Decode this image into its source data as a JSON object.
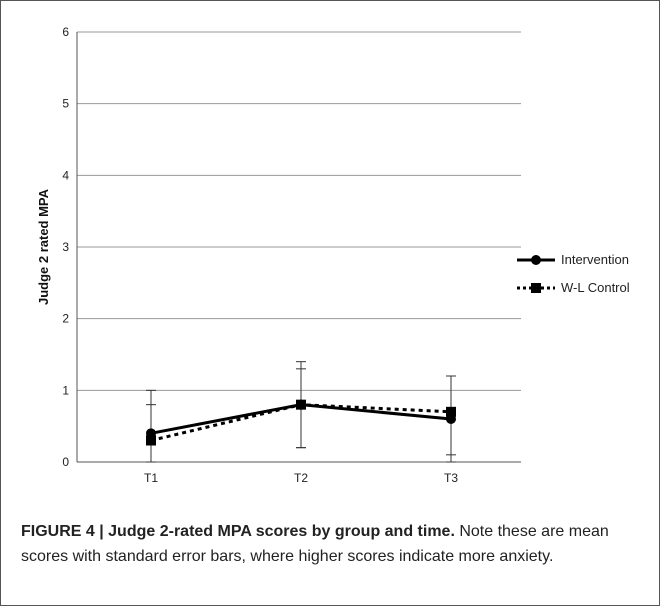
{
  "chart_data": {
    "type": "line",
    "categories": [
      "T1",
      "T2",
      "T3"
    ],
    "ylabel": "Judge 2 rated MPA",
    "ylim": [
      0,
      6
    ],
    "yticks": [
      0,
      1,
      2,
      3,
      4,
      5,
      6
    ],
    "grid": true,
    "legend": "right",
    "series": [
      {
        "name": "Intervention",
        "values": [
          0.4,
          0.8,
          0.6
        ],
        "error_upper": [
          1.0,
          1.4,
          1.2
        ],
        "error_lower": [
          0.0,
          0.2,
          0.0
        ],
        "marker": "circle",
        "line_style": "solid",
        "color": "#000000"
      },
      {
        "name": "W-L Control",
        "values": [
          0.3,
          0.8,
          0.7
        ],
        "error_upper": [
          0.8,
          1.3,
          1.2
        ],
        "error_lower": [
          0.0,
          0.2,
          0.1
        ],
        "marker": "square",
        "line_style": "dotted",
        "color": "#000000"
      }
    ]
  },
  "caption": {
    "figure_label": "FIGURE 4 | Judge 2-rated MPA scores by group and time.",
    "text": " Note these are mean scores with standard error bars, where higher scores indicate more anxiety."
  },
  "colors": {
    "grid": "#9a9a9a",
    "axis": "#555555",
    "frame": "#555555"
  }
}
